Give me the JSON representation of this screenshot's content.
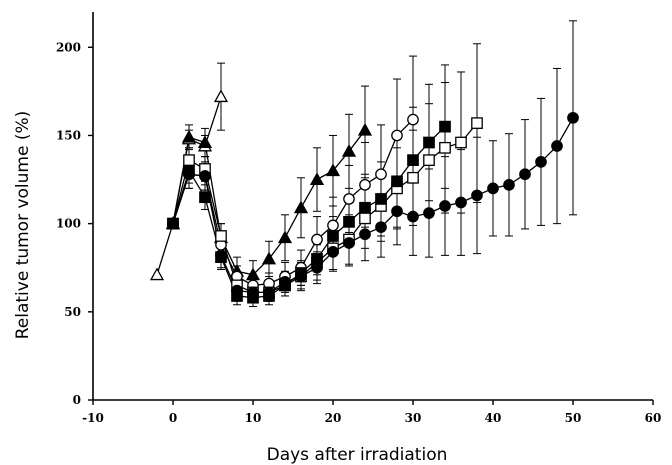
{
  "chart_data": {
    "type": "scatter",
    "title": "",
    "xlabel": "Days after irradiation",
    "ylabel": "Relative tumor volume (%)",
    "xlim": [
      -10,
      60
    ],
    "ylim": [
      0,
      220
    ],
    "xticks": [
      -10,
      0,
      10,
      20,
      30,
      40,
      50,
      60
    ],
    "yticks": [
      0,
      50,
      100,
      150,
      200
    ],
    "grid": false,
    "legend": "none",
    "series": [
      {
        "marker": "open-triangle",
        "x": [
          -2,
          0,
          2,
          4,
          6
        ],
        "y": [
          71,
          100,
          148,
          144,
          172
        ],
        "err": [
          0,
          0,
          5,
          6,
          19
        ]
      },
      {
        "marker": "filled-triangle",
        "x": [
          0,
          2,
          4,
          6,
          8,
          10,
          12,
          14,
          16,
          18,
          20,
          22,
          24
        ],
        "y": [
          100,
          149,
          146,
          92,
          73,
          71,
          80,
          92,
          109,
          125,
          130,
          141,
          153
        ],
        "err": [
          0,
          7,
          8,
          8,
          8,
          8,
          10,
          13,
          17,
          18,
          20,
          21,
          25
        ]
      },
      {
        "marker": "open-circle",
        "x": [
          0,
          2,
          4,
          6,
          8,
          10,
          12,
          14,
          16,
          18,
          20,
          22,
          24,
          26,
          28,
          30
        ],
        "y": [
          100,
          128,
          127,
          88,
          70,
          65,
          66,
          70,
          75,
          91,
          99,
          114,
          122,
          128,
          150,
          159
        ],
        "err": [
          0,
          8,
          8,
          7,
          6,
          6,
          6,
          8,
          10,
          13,
          16,
          19,
          24,
          28,
          32,
          36
        ]
      },
      {
        "marker": "open-square",
        "x": [
          0,
          2,
          4,
          6,
          8,
          10,
          12,
          14,
          16,
          18,
          20,
          22,
          24,
          26,
          28,
          30,
          32,
          34,
          36,
          38
        ],
        "y": [
          100,
          136,
          131,
          93,
          65,
          61,
          61,
          65,
          70,
          78,
          86,
          91,
          103,
          110,
          120,
          126,
          136,
          143,
          146,
          157
        ],
        "err": [
          0,
          7,
          7,
          7,
          6,
          5,
          5,
          6,
          8,
          10,
          12,
          14,
          17,
          20,
          23,
          27,
          32,
          37,
          40,
          45
        ]
      },
      {
        "marker": "filled-square",
        "x": [
          0,
          2,
          4,
          6,
          8,
          10,
          12,
          14,
          16,
          18,
          20,
          22,
          24,
          26,
          28,
          30,
          32,
          34
        ],
        "y": [
          100,
          130,
          115,
          81,
          59,
          58,
          59,
          65,
          72,
          80,
          93,
          101,
          109,
          114,
          124,
          136,
          146,
          155
        ],
        "err": [
          0,
          7,
          7,
          7,
          5,
          5,
          5,
          6,
          7,
          9,
          11,
          13,
          17,
          21,
          26,
          30,
          33,
          35
        ]
      },
      {
        "marker": "filled-circle",
        "x": [
          0,
          2,
          4,
          6,
          8,
          10,
          12,
          14,
          16,
          18,
          20,
          22,
          24,
          26,
          28,
          30,
          32,
          34,
          36,
          38,
          40,
          42,
          44,
          46,
          48,
          50
        ],
        "y": [
          100,
          128,
          127,
          82,
          62,
          61,
          61,
          67,
          70,
          75,
          84,
          89,
          94,
          98,
          107,
          104,
          106,
          110,
          112,
          116,
          120,
          122,
          128,
          135,
          144,
          160
        ],
        "err": [
          0,
          8,
          8,
          7,
          6,
          5,
          5,
          6,
          7,
          9,
          11,
          13,
          15,
          17,
          19,
          22,
          25,
          28,
          30,
          33,
          27,
          29,
          31,
          36,
          44,
          55
        ]
      }
    ]
  }
}
